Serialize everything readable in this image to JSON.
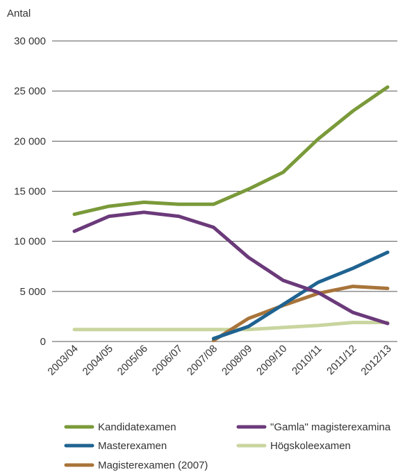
{
  "chart_data": {
    "type": "line",
    "title": "",
    "ylabel": "Antal",
    "xlabel": "",
    "ylim": [
      0,
      30000
    ],
    "y_ticks": [
      {
        "value": 0,
        "label": "0"
      },
      {
        "value": 5000,
        "label": "5 000"
      },
      {
        "value": 10000,
        "label": "10 000"
      },
      {
        "value": 15000,
        "label": "15 000"
      },
      {
        "value": 20000,
        "label": "20 000"
      },
      {
        "value": 25000,
        "label": "25 000"
      },
      {
        "value": 30000,
        "label": "30 000"
      }
    ],
    "grid": "horizontal",
    "legend_placement": "bottom",
    "categories": [
      "2003/04",
      "2004/05",
      "2005/06",
      "2006/07",
      "2007/08",
      "2008/09",
      "2009/10",
      "2010/11",
      "2011/12",
      "2012/13"
    ],
    "series": [
      {
        "name": "Kandidatexamen",
        "color": "#7a9a3a",
        "values": [
          12700,
          13500,
          13900,
          13700,
          13700,
          15200,
          16900,
          20200,
          23000,
          25400
        ]
      },
      {
        "name": "\"Gamla\" magisterexamina",
        "color": "#6b3a7a",
        "values": [
          11000,
          12500,
          12900,
          12500,
          11400,
          8400,
          6100,
          4900,
          2900,
          1800
        ]
      },
      {
        "name": "Masterexamen",
        "color": "#1f6391",
        "values": [
          null,
          null,
          null,
          null,
          300,
          1500,
          3700,
          5900,
          7300,
          8900
        ]
      },
      {
        "name": "Högskoleexamen",
        "color": "#c9d59f",
        "values": [
          1200,
          1200,
          1200,
          1200,
          1200,
          1200,
          1400,
          1600,
          1900,
          1900
        ]
      },
      {
        "name": "Magisterexamen (2007)",
        "color": "#a8743a",
        "values": [
          null,
          null,
          null,
          null,
          100,
          2300,
          3600,
          4800,
          5500,
          5300
        ]
      }
    ]
  }
}
